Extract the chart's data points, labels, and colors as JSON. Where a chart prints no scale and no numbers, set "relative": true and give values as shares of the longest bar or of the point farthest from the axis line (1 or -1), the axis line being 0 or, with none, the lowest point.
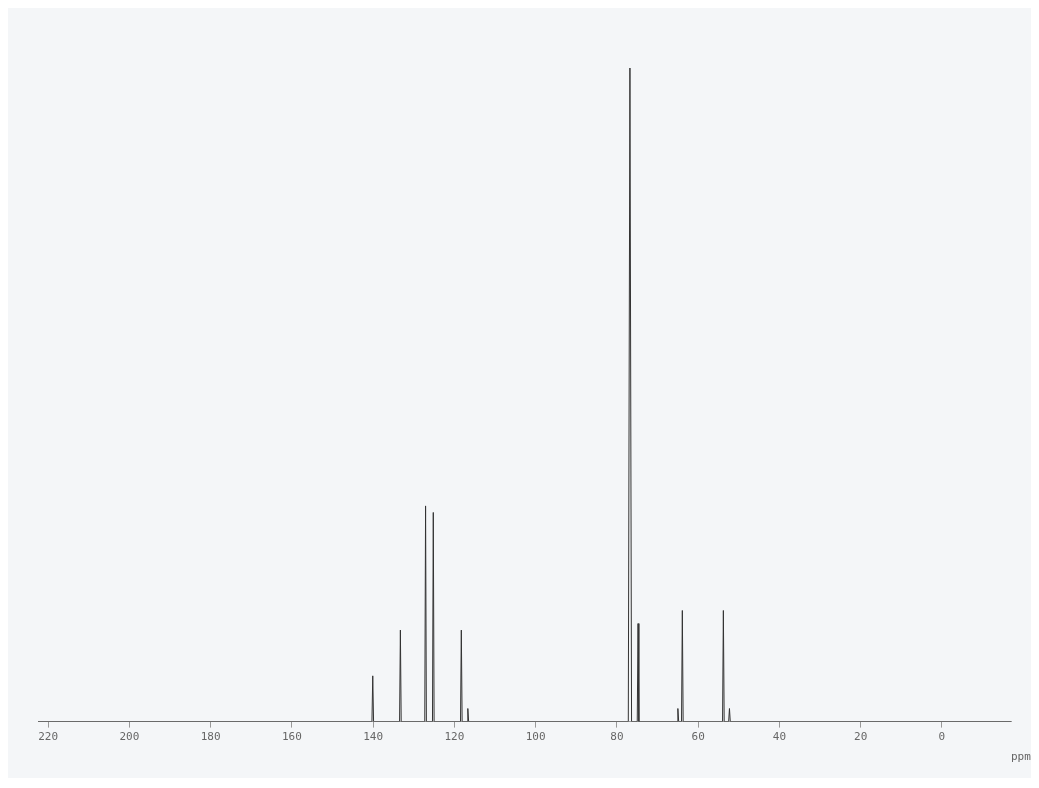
{
  "chart_data": {
    "type": "line",
    "relative": true,
    "xlabel": "ppm",
    "xlim": [
      222.5,
      -17
    ],
    "xticks": [
      220,
      200,
      180,
      160,
      140,
      120,
      100,
      80,
      60,
      40,
      20,
      0
    ],
    "marker": "none",
    "grid": false,
    "series": [
      {
        "color": "#333333",
        "x": [
          222.5,
          140.3,
          140.1,
          139.9,
          133.5,
          133.3,
          133.1,
          127.3,
          127.1,
          126.9,
          125.4,
          125.2,
          125.0,
          118.5,
          118.3,
          118.1,
          116.9,
          116.7,
          116.5,
          77.2,
          76.8,
          76.4,
          75.0,
          74.8,
          74.6,
          65.2,
          65.0,
          64.8,
          64.1,
          63.9,
          63.7,
          54.0,
          53.8,
          53.6,
          52.5,
          52.3,
          52.1,
          -17
        ],
        "values": [
          0,
          0,
          0.07,
          0,
          0,
          0.14,
          0,
          0,
          0.33,
          0,
          0,
          0.32,
          0,
          0,
          0.14,
          0,
          0,
          0.02,
          0,
          0,
          1,
          0,
          0,
          0.15,
          0,
          0,
          0.02,
          0,
          0,
          0.17,
          0,
          0,
          0.17,
          0,
          0,
          0.02,
          0,
          0
        ]
      }
    ]
  }
}
